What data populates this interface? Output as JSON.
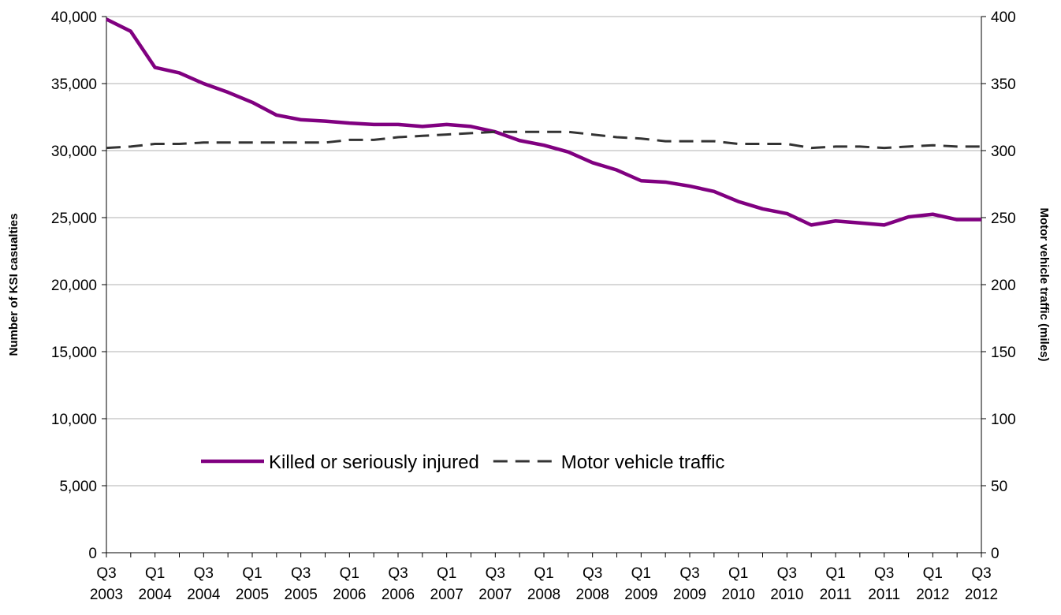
{
  "chart_data": {
    "type": "line",
    "y_label": "Number of KSI casualties",
    "y2_label": "Motor vehicle traffic (miles)",
    "categories": [
      "Q3 2003",
      null,
      "Q1 2004",
      null,
      "Q3 2004",
      null,
      "Q1 2005",
      null,
      "Q3 2005",
      null,
      "Q1 2006",
      null,
      "Q3 2006",
      null,
      "Q1 2007",
      null,
      "Q3 2007",
      null,
      "Q1 2008",
      null,
      "Q3 2008",
      null,
      "Q1 2009",
      null,
      "Q3 2009",
      null,
      "Q1 2010",
      null,
      "Q3 2010",
      null,
      "Q1 2011",
      null,
      "Q3 2011",
      null,
      "Q1 2012",
      null,
      "Q3 2012"
    ],
    "series": [
      {
        "name": "Killed or seriously injured",
        "color": "#800080",
        "dash": "solid",
        "axis": "y",
        "values": [
          39800,
          38900,
          36200,
          35800,
          35000,
          34350,
          33600,
          32650,
          32300,
          32200,
          32050,
          31950,
          31950,
          31800,
          31950,
          31800,
          31400,
          30750,
          30400,
          29900,
          29100,
          28550,
          27750,
          27650,
          27350,
          26950,
          26200,
          25650,
          25300,
          24450,
          24750,
          24600,
          24450,
          25050,
          25250,
          24850,
          24850
        ]
      },
      {
        "name": "Motor vehicle traffic",
        "color": "#333333",
        "dash": "dashed",
        "axis": "y2",
        "values": [
          302,
          303,
          305,
          305,
          306,
          306,
          306,
          306,
          306,
          306,
          308,
          308,
          310,
          311,
          312,
          313,
          314,
          314,
          314,
          314,
          312,
          310,
          309,
          307,
          307,
          307,
          305,
          305,
          305,
          302,
          303,
          303,
          302,
          303,
          304,
          303,
          303
        ]
      }
    ],
    "ylim": [
      0,
      40000
    ],
    "yticks": [
      0,
      {
        "value": 5000,
        "label": "5,000"
      },
      {
        "value": 10000,
        "label": "10,000"
      },
      {
        "value": 15000,
        "label": "15,000"
      },
      {
        "value": 20000,
        "label": "20,000"
      },
      {
        "value": 25000,
        "label": "25,000"
      },
      {
        "value": 30000,
        "label": "30,000"
      },
      {
        "value": 35000,
        "label": "35,000"
      },
      {
        "value": 40000,
        "label": "40,000"
      }
    ],
    "y2lim": [
      0,
      400
    ],
    "y2ticks": [
      0,
      50,
      100,
      150,
      200,
      250,
      300,
      350,
      400
    ],
    "grid": true,
    "legend": "bottom"
  }
}
